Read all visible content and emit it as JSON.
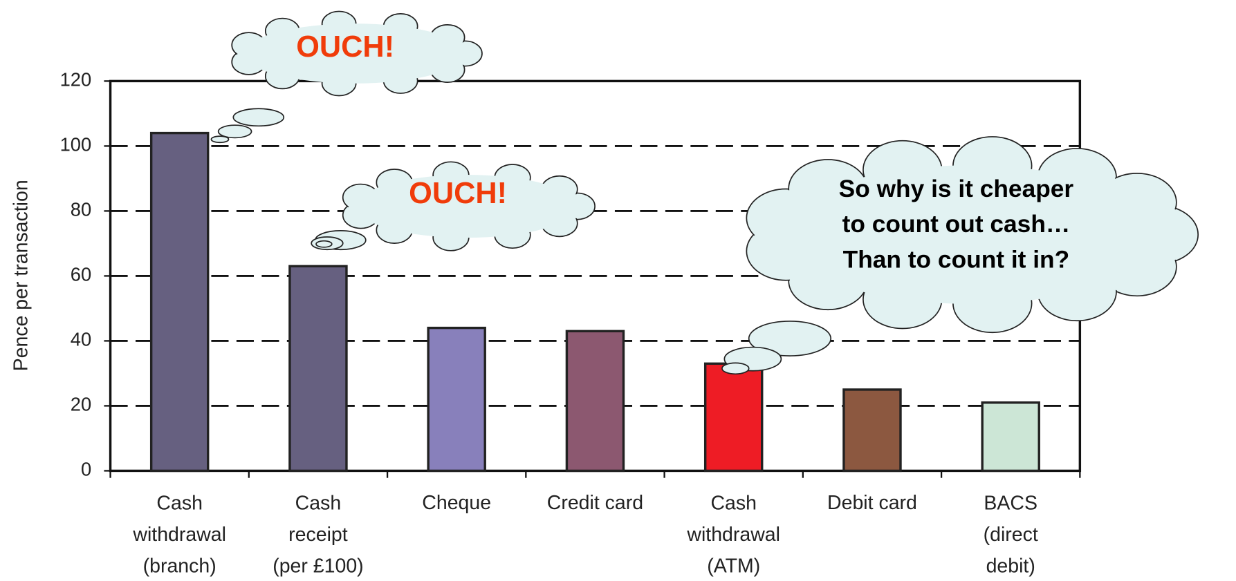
{
  "chart_data": {
    "type": "bar",
    "y_label": "Pence per transaction",
    "categories": [
      "Cash\nwithdrawal\n(branch)",
      "Cash\nreceipt\n(per £100)",
      "Cheque",
      "Credit card",
      "Cash\nwithdrawal\n(ATM)",
      "Debit card",
      "BACS\n(direct\ndebit)"
    ],
    "values": [
      104,
      63,
      44,
      43,
      33,
      25,
      21
    ],
    "colors": [
      "#666080",
      "#666080",
      "#8880bb",
      "#8c5870",
      "#ee1c25",
      "#8c5840",
      "#cce6d6"
    ],
    "ylim": [
      0,
      120
    ],
    "yticks": [
      0,
      20,
      40,
      60,
      80,
      100,
      120
    ],
    "grid": true,
    "annotations": [
      "OUCH!",
      "OUCH!",
      "So why is it cheaper\nto count out cash…\nThan to count it in?"
    ]
  }
}
